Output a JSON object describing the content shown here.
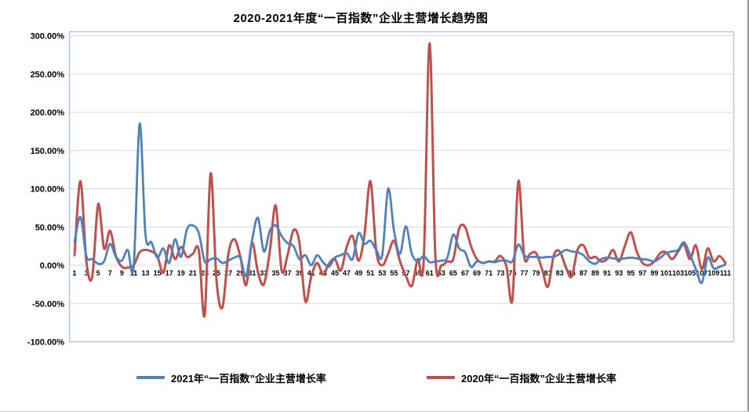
{
  "title": "2020-2021年度“一百指数”企业主营增长趋势图",
  "colors": {
    "series_2021": "#4F81BD",
    "series_2020": "#C0504D",
    "gridline": "#D9D9D9",
    "plot_border": "#A9C0DE",
    "axis_text": "#000000",
    "background": "#FFFFFF"
  },
  "legend": {
    "items": [
      {
        "label": "2021年“一百指数”企业主营增长率",
        "color": "#4F81BD"
      },
      {
        "label": "2020年“一百指数”企业主营增长率",
        "color": "#C0504D"
      }
    ],
    "position": "bottom"
  },
  "y_axis": {
    "tick_labels": [
      "300.00%",
      "250.00%",
      "200.00%",
      "150.00%",
      "100.00%",
      "50.00%",
      "0.00%",
      "-50.00%",
      "-100.00%"
    ],
    "min": -100,
    "max": 300,
    "step": 50
  },
  "x_axis": {
    "tick_labels": [
      1,
      3,
      5,
      7,
      9,
      11,
      13,
      15,
      17,
      19,
      21,
      23,
      25,
      27,
      29,
      31,
      33,
      35,
      37,
      39,
      41,
      43,
      45,
      47,
      49,
      51,
      53,
      55,
      57,
      59,
      61,
      63,
      65,
      67,
      69,
      71,
      73,
      75,
      77,
      79,
      81,
      83,
      85,
      87,
      89,
      91,
      93,
      95,
      97,
      99,
      101,
      103,
      105,
      107,
      109,
      111
    ],
    "min": 1,
    "max": 111
  },
  "chart_data": {
    "type": "line",
    "title": "2020-2021年度“一百指数”企业主营增长趋势图",
    "xlabel": "",
    "ylabel": "",
    "ylim": [
      -100,
      300
    ],
    "grid": true,
    "legend_position": "bottom",
    "x_count": 111,
    "smooth": true,
    "series": [
      {
        "name": "2021年“一百指数”企业主营增长率",
        "color": "#4F81BD",
        "unit": "%",
        "values": [
          30,
          63,
          12,
          8,
          2,
          5,
          28,
          11,
          6,
          20,
          -2,
          185,
          40,
          30,
          10,
          22,
          3,
          34,
          11,
          47,
          52,
          42,
          5,
          8,
          9,
          3,
          6,
          10,
          10,
          -14,
          33,
          62,
          18,
          45,
          52,
          38,
          29,
          25,
          8,
          13,
          0,
          13,
          4,
          -2,
          10,
          13,
          16,
          8,
          42,
          28,
          32,
          20,
          13,
          100,
          45,
          15,
          51,
          15,
          5,
          12,
          4,
          5,
          6,
          10,
          40,
          22,
          17,
          -2,
          5,
          3,
          5,
          4,
          6,
          6,
          5,
          27,
          13,
          11,
          11,
          10,
          11,
          11,
          15,
          20,
          18,
          17,
          13,
          5,
          2,
          8,
          10,
          9,
          8,
          9,
          10,
          9,
          8,
          7,
          5,
          10,
          16,
          18,
          20,
          30,
          14,
          -5,
          -23,
          10,
          -4,
          -2,
          1
        ]
      },
      {
        "name": "2020年“一百指数”企业主营增长率",
        "color": "#C0504D",
        "unit": "%",
        "values": [
          13,
          110,
          5,
          -15,
          80,
          22,
          45,
          12,
          -2,
          -3,
          0,
          17,
          20,
          18,
          12,
          -10,
          26,
          8,
          24,
          11,
          15,
          20,
          -65,
          120,
          -20,
          -55,
          15,
          34,
          12,
          -26,
          29,
          -9,
          -25,
          18,
          78,
          -7,
          13,
          46,
          30,
          -47,
          -15,
          3,
          -12,
          2,
          8,
          -7,
          24,
          38,
          6,
          40,
          110,
          18,
          0,
          15,
          32,
          5,
          -14,
          -27,
          8,
          5,
          290,
          10,
          0,
          5,
          8,
          48,
          50,
          25,
          8,
          3,
          5,
          5,
          12,
          -2,
          -45,
          110,
          11,
          15,
          16,
          -5,
          -28,
          13,
          18,
          -2,
          -15,
          20,
          26,
          10,
          11,
          5,
          8,
          20,
          5,
          25,
          43,
          18,
          3,
          0,
          5,
          16,
          17,
          8,
          18,
          27,
          8,
          26,
          -5,
          22,
          5,
          12,
          3
        ]
      }
    ]
  }
}
